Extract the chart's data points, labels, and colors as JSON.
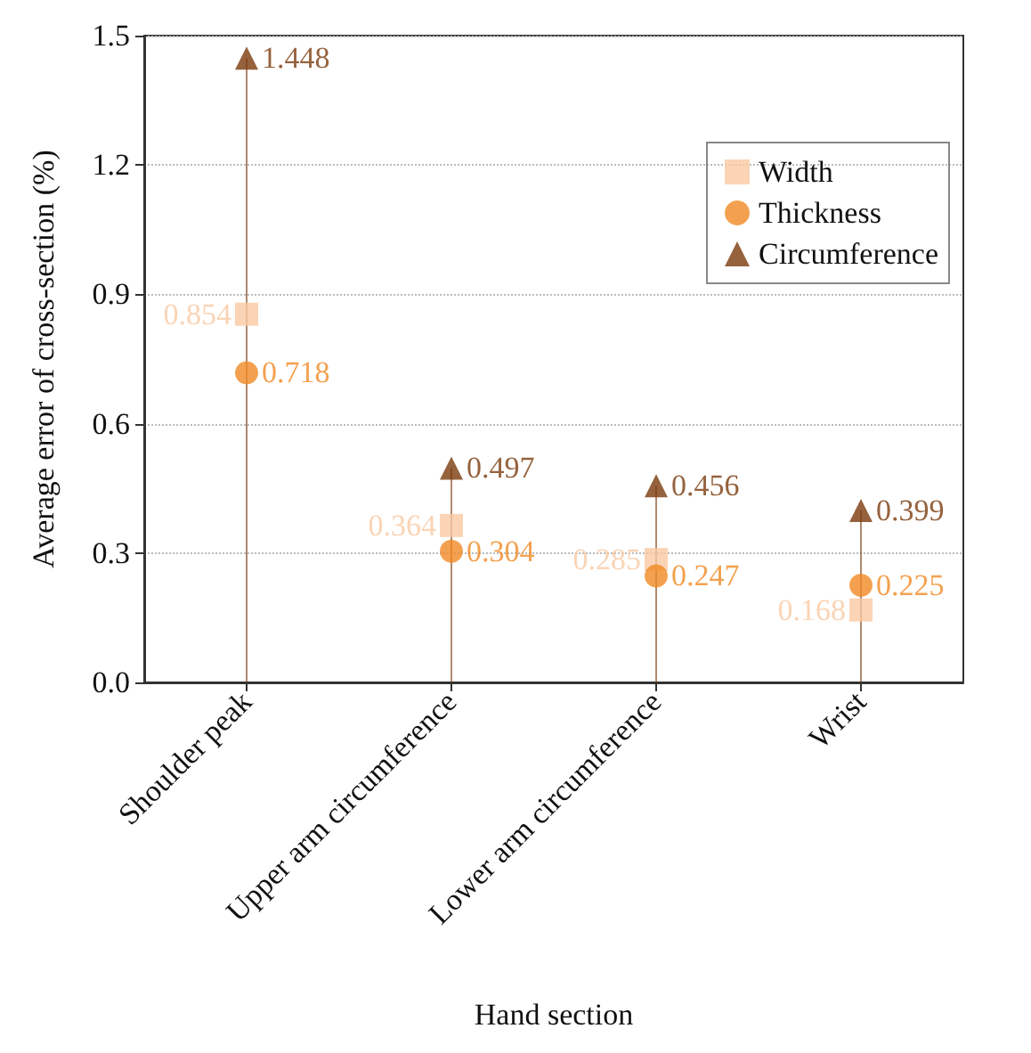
{
  "chart_data": {
    "type": "scatter",
    "xlabel": "Hand section",
    "ylabel": "Average error of cross-section (%)",
    "categories": [
      "Shoulder peak",
      "Upper arm circumference",
      "Lower arm circumference",
      "Wrist"
    ],
    "ylim": [
      0,
      1.5
    ],
    "yticks": [
      {
        "value": 0,
        "label": "0.0"
      },
      0.3,
      0.6,
      0.9,
      1.2,
      1.5
    ],
    "grid": "y",
    "legend": "top right",
    "data_labels": true,
    "series": [
      {
        "name": "Width",
        "color": "#f9c9a3",
        "marker": "square",
        "values": [
          0.854,
          0.364,
          0.285,
          0.168
        ]
      },
      {
        "name": "Thickness",
        "color": "#f08a24",
        "marker": "circle",
        "values": [
          0.718,
          0.304,
          0.247,
          0.225
        ]
      },
      {
        "name": "Circumference",
        "type": "lollipop",
        "color": "#7a3b0c",
        "marker": "triangle",
        "values": [
          1.448,
          0.497,
          0.456,
          0.399
        ]
      }
    ]
  }
}
